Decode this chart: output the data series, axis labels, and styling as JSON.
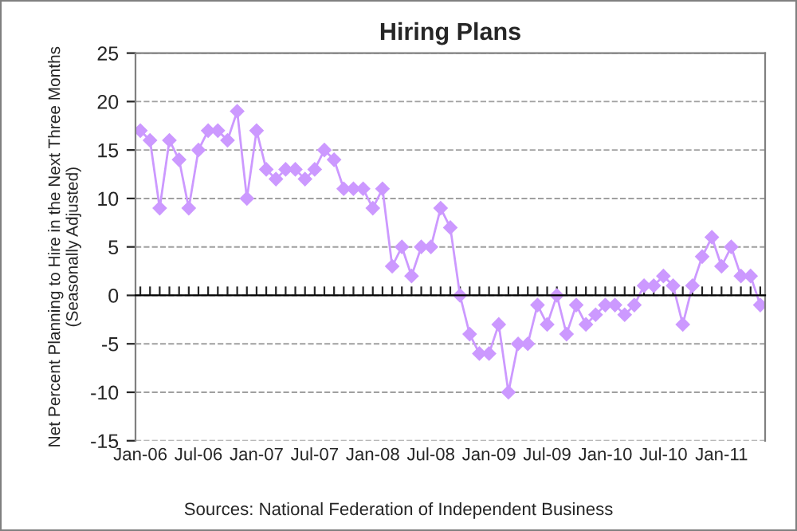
{
  "chart_data": {
    "type": "line",
    "title": "Hiring Plans",
    "ylabel": "Net Percent Planning to Hire in the Next Three Months\n(Seasonally Adjusted)",
    "annotations": [
      "Sources: National Federation of Independent Business"
    ],
    "categories": [
      "Jan-06",
      null,
      null,
      null,
      null,
      null,
      "Jul-06",
      null,
      null,
      null,
      null,
      null,
      "Jan-07",
      null,
      null,
      null,
      null,
      null,
      "Jul-07",
      null,
      null,
      null,
      null,
      null,
      "Jan-08",
      null,
      null,
      null,
      null,
      null,
      "Jul-08",
      null,
      null,
      null,
      null,
      null,
      "Jan-09",
      null,
      null,
      null,
      null,
      null,
      "Jul-09",
      null,
      null,
      null,
      null,
      null,
      "Jan-10",
      null,
      null,
      null,
      null,
      null,
      "Jul-10",
      null,
      null,
      null,
      null,
      null,
      "Jan-11",
      null,
      null,
      null,
      null
    ],
    "series": [
      {
        "color": "#cc99ff",
        "values": [
          17,
          16,
          9,
          16,
          14,
          9,
          15,
          17,
          17,
          16,
          19,
          10,
          17,
          13,
          12,
          13,
          13,
          12,
          13,
          15,
          14,
          11,
          11,
          11,
          9,
          11,
          3,
          5,
          2,
          5,
          5,
          9,
          7,
          0,
          -4,
          -6,
          -6,
          -3,
          -10,
          -5,
          -5,
          -1,
          -3,
          0,
          -4,
          -1,
          -3,
          -2,
          -1,
          -1,
          -2,
          -1,
          1,
          1,
          2,
          1,
          -3,
          1,
          4,
          6,
          3,
          5,
          2,
          2,
          -1
        ]
      }
    ],
    "ylim": [
      -15,
      25
    ],
    "yticks": [
      -15,
      -10,
      -5,
      0,
      5,
      10,
      15,
      20,
      25
    ],
    "grid": "y",
    "marker": "diamond",
    "line_style": "solid",
    "legend": false
  }
}
